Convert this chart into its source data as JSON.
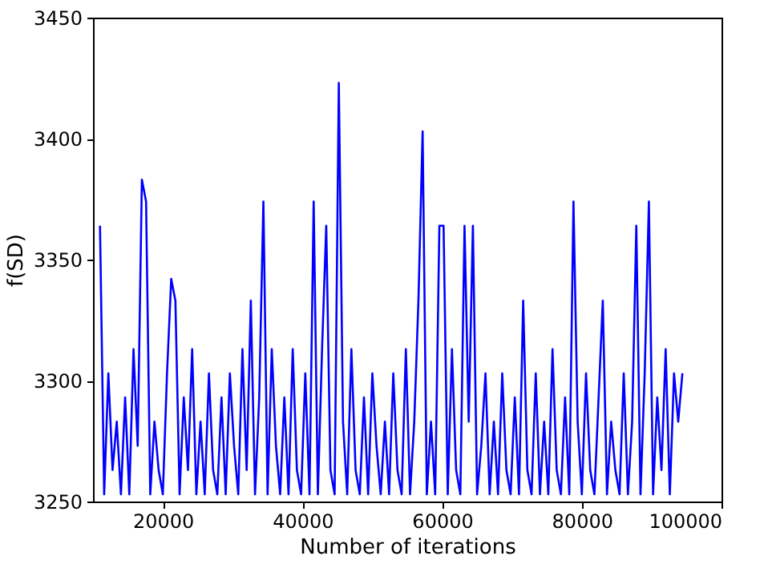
{
  "chart_data": {
    "type": "line",
    "xlabel": "Number of iterations",
    "ylabel": "f(SD)",
    "xlim": [
      10000,
      100000
    ],
    "xticks": [
      20000,
      40000,
      60000,
      80000,
      100000
    ],
    "ylim": [
      3250,
      3450
    ],
    "yticks": [
      3250,
      3300,
      3350,
      3400,
      3450
    ],
    "grid": false,
    "x": [
      11000,
      11600,
      12200,
      12800,
      13400,
      14000,
      14600,
      15200,
      15800,
      16400,
      17000,
      17600,
      18200,
      18800,
      19400,
      20000,
      20600,
      21200,
      21800,
      22400,
      23000,
      23600,
      24200,
      24800,
      25400,
      26000,
      26600,
      27200,
      27800,
      28400,
      29000,
      29600,
      30200,
      30800,
      31400,
      32000,
      32600,
      33200,
      33800,
      34400,
      35000,
      35600,
      36200,
      36800,
      37400,
      38000,
      38600,
      39200,
      39800,
      40400,
      41000,
      41600,
      42200,
      42800,
      43400,
      44000,
      44600,
      45200,
      45800,
      46400,
      47000,
      47600,
      48200,
      48800,
      49400,
      50000,
      50600,
      51200,
      51800,
      52400,
      53000,
      53600,
      54200,
      54800,
      55400,
      56000,
      56600,
      57200,
      57800,
      58400,
      59000,
      59600,
      60200,
      60800,
      61400,
      62000,
      62600,
      63200,
      63800,
      64400,
      65000,
      65600,
      66200,
      66800,
      67400,
      68000,
      68600,
      69200,
      69800,
      70400,
      71000,
      71600,
      72200,
      72800,
      73400,
      74000,
      74600,
      75200,
      75800,
      76400,
      77000,
      77600,
      78200,
      78800,
      79400,
      80000,
      80600,
      81200,
      81800,
      82400,
      83000,
      83600,
      84200,
      84800,
      85400,
      86000,
      86600,
      87200,
      87800,
      88400,
      89000,
      89600,
      90200,
      90800,
      91400,
      92000,
      92600,
      93200,
      93800,
      94400
    ],
    "series": [
      {
        "color": "#0000ff",
        "values": [
          3364,
          3253,
          3303,
          3263,
          3283,
          3253,
          3293,
          3253,
          3313,
          3273,
          3383,
          3374,
          3253,
          3283,
          3263,
          3253,
          3303,
          3342,
          3333,
          3253,
          3293,
          3263,
          3313,
          3253,
          3283,
          3253,
          3303,
          3263,
          3253,
          3293,
          3253,
          3303,
          3273,
          3253,
          3313,
          3263,
          3333,
          3253,
          3293,
          3374,
          3253,
          3313,
          3273,
          3253,
          3293,
          3253,
          3313,
          3263,
          3253,
          3303,
          3253,
          3374,
          3253,
          3313,
          3364,
          3263,
          3253,
          3423,
          3283,
          3253,
          3313,
          3263,
          3253,
          3293,
          3253,
          3303,
          3273,
          3253,
          3283,
          3253,
          3303,
          3263,
          3253,
          3313,
          3253,
          3283,
          3333,
          3403,
          3253,
          3283,
          3253,
          3364,
          3364,
          3253,
          3313,
          3263,
          3253,
          3364,
          3283,
          3364,
          3253,
          3273,
          3303,
          3253,
          3283,
          3253,
          3303,
          3263,
          3253,
          3293,
          3253,
          3333,
          3263,
          3253,
          3303,
          3253,
          3283,
          3253,
          3313,
          3263,
          3253,
          3293,
          3253,
          3374,
          3283,
          3253,
          3303,
          3263,
          3253,
          3293,
          3333,
          3253,
          3283,
          3263,
          3253,
          3303,
          3253,
          3283,
          3364,
          3253,
          3303,
          3374,
          3253,
          3293,
          3263,
          3313,
          3253,
          3303,
          3283,
          3303
        ]
      }
    ]
  }
}
